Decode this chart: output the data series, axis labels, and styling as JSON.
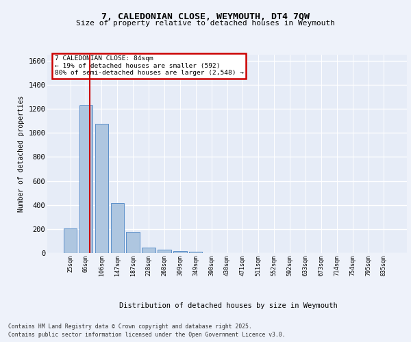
{
  "title1": "7, CALEDONIAN CLOSE, WEYMOUTH, DT4 7QW",
  "title2": "Size of property relative to detached houses in Weymouth",
  "xlabel": "Distribution of detached houses by size in Weymouth",
  "ylabel": "Number of detached properties",
  "categories": [
    "25sqm",
    "66sqm",
    "106sqm",
    "147sqm",
    "187sqm",
    "228sqm",
    "268sqm",
    "309sqm",
    "349sqm",
    "390sqm",
    "430sqm",
    "471sqm",
    "511sqm",
    "552sqm",
    "592sqm",
    "633sqm",
    "673sqm",
    "714sqm",
    "754sqm",
    "795sqm",
    "835sqm"
  ],
  "values": [
    205,
    1230,
    1075,
    415,
    175,
    45,
    27,
    17,
    10,
    0,
    0,
    0,
    0,
    0,
    0,
    0,
    0,
    0,
    0,
    0,
    0
  ],
  "bar_color": "#aec6e0",
  "bar_edge_color": "#5b8fc9",
  "plot_bg": "#e6ecf7",
  "fig_bg": "#eef2fa",
  "grid_color": "#ffffff",
  "red_line_color": "#cc0000",
  "property_line_x": 1.22,
  "annotation_text": "7 CALEDONIAN CLOSE: 84sqm\n← 19% of detached houses are smaller (592)\n80% of semi-detached houses are larger (2,548) →",
  "ann_box_fc": "#ffffff",
  "ann_box_ec": "#cc0000",
  "ylim": [
    0,
    1650
  ],
  "yticks": [
    0,
    200,
    400,
    600,
    800,
    1000,
    1200,
    1400,
    1600
  ],
  "footer1": "Contains HM Land Registry data © Crown copyright and database right 2025.",
  "footer2": "Contains public sector information licensed under the Open Government Licence v3.0."
}
